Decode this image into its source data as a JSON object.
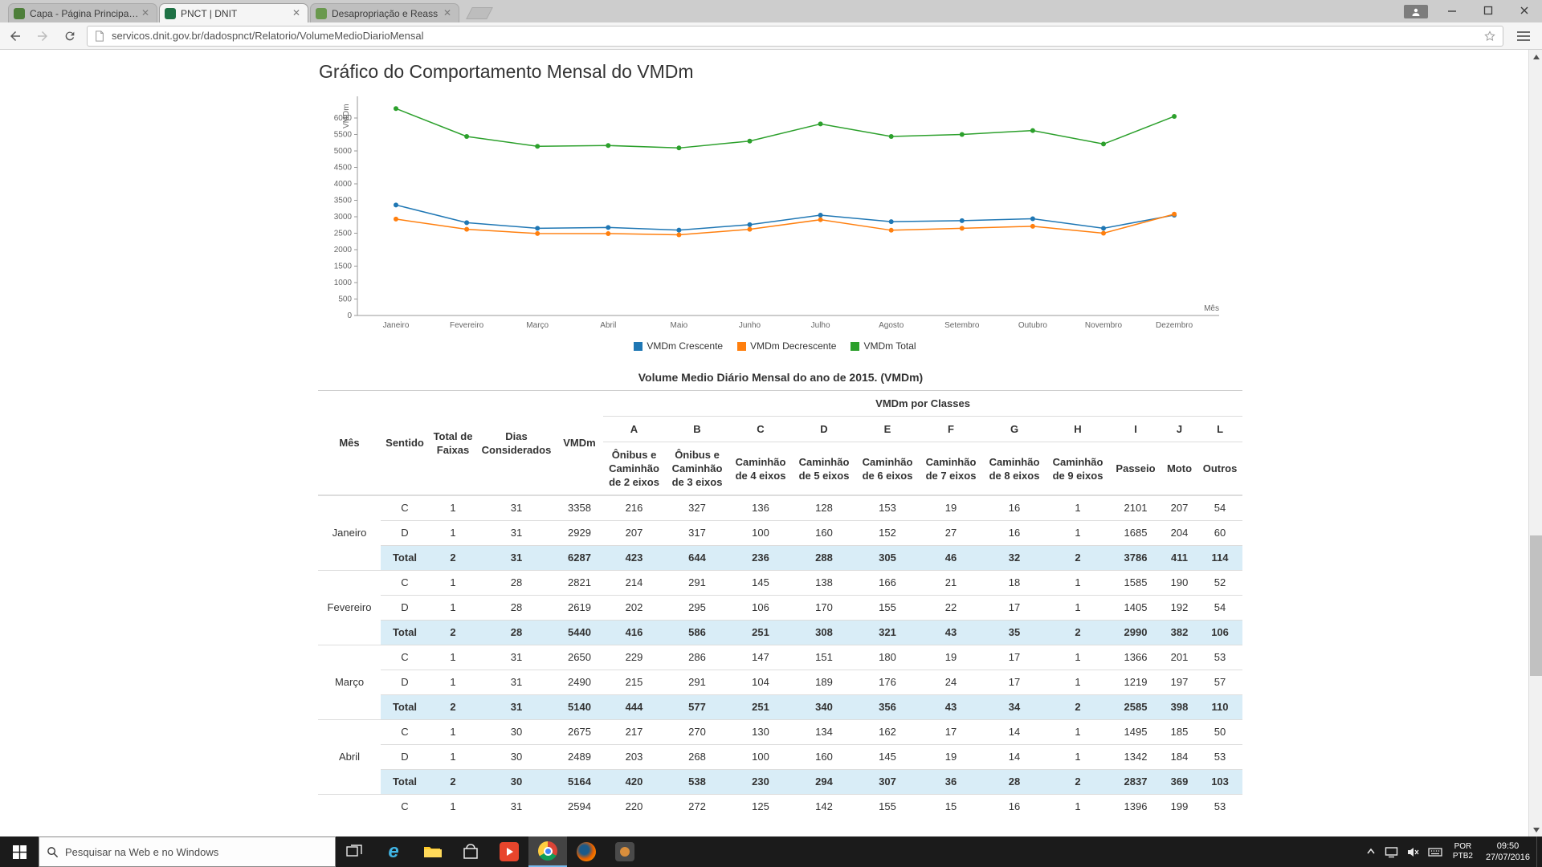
{
  "browser": {
    "tabs": [
      {
        "title": "Capa - Página Principal —"
      },
      {
        "title": "PNCT | DNIT"
      },
      {
        "title": "Desapropriação e Reass"
      }
    ],
    "close_glyph": "✕",
    "url": "servicos.dnit.gov.br/dadospnct/Relatorio/VolumeMedioDiarioMensal"
  },
  "page": {
    "chart_title": "Gráfico do Comportamento Mensal do VMDm",
    "table_title": "Volume Medio Diário Mensal do ano de 2015. (VMDm)"
  },
  "chart_data": {
    "type": "line",
    "title": "Gráfico do Comportamento Mensal do VMDm",
    "xlabel": "Mês",
    "ylabel": "VMDm",
    "x": [
      "Janeiro",
      "Fevereiro",
      "Março",
      "Abril",
      "Maio",
      "Junho",
      "Julho",
      "Agosto",
      "Setembro",
      "Outubro",
      "Novembro",
      "Dezembro"
    ],
    "ylim": [
      0,
      6500
    ],
    "yticks": [
      0,
      500,
      1000,
      1500,
      2000,
      2500,
      3000,
      3500,
      4000,
      4500,
      5000,
      5500,
      6000
    ],
    "grid": false,
    "legend_position": "bottom",
    "series": [
      {
        "name": "VMDm Crescente",
        "color": "#1f77b4",
        "values": [
          3358,
          2821,
          2650,
          2675,
          2594,
          2760,
          3050,
          2850,
          2880,
          2940,
          2650,
          3050
        ]
      },
      {
        "name": "VMDm Decrescente",
        "color": "#ff7f0e",
        "values": [
          2929,
          2619,
          2490,
          2489,
          2450,
          2620,
          2910,
          2590,
          2650,
          2710,
          2500,
          3080
        ]
      },
      {
        "name": "VMDm Total",
        "color": "#2ca02c",
        "values": [
          6287,
          5440,
          5140,
          5164,
          5090,
          5300,
          5820,
          5440,
          5500,
          5620,
          5210,
          6050
        ]
      }
    ]
  },
  "table": {
    "classes_group_label": "VMDm por Classes",
    "base_columns": [
      "Mês",
      "Sentido",
      "Total de Faixas",
      "Dias Considerados",
      "VMDm"
    ],
    "class_letters": [
      "A",
      "B",
      "C",
      "D",
      "E",
      "F",
      "G",
      "H",
      "I",
      "J",
      "L"
    ],
    "class_labels": [
      "Ônibus e Caminhão de 2 eixos",
      "Ônibus e Caminhão de 3 eixos",
      "Caminhão de 4 eixos",
      "Caminhão de 5 eixos",
      "Caminhão de 6 eixos",
      "Caminhão de 7 eixos",
      "Caminhão de 8 eixos",
      "Caminhão de 9 eixos",
      "Passeio",
      "Moto",
      "Outros"
    ],
    "months": [
      {
        "name": "Janeiro",
        "rows": [
          [
            "C",
            "1",
            "31",
            "3358",
            "216",
            "327",
            "136",
            "128",
            "153",
            "19",
            "16",
            "1",
            "2101",
            "207",
            "54"
          ],
          [
            "D",
            "1",
            "31",
            "2929",
            "207",
            "317",
            "100",
            "160",
            "152",
            "27",
            "16",
            "1",
            "1685",
            "204",
            "60"
          ]
        ],
        "total": [
          "Total",
          "2",
          "31",
          "6287",
          "423",
          "644",
          "236",
          "288",
          "305",
          "46",
          "32",
          "2",
          "3786",
          "411",
          "114"
        ]
      },
      {
        "name": "Fevereiro",
        "rows": [
          [
            "C",
            "1",
            "28",
            "2821",
            "214",
            "291",
            "145",
            "138",
            "166",
            "21",
            "18",
            "1",
            "1585",
            "190",
            "52"
          ],
          [
            "D",
            "1",
            "28",
            "2619",
            "202",
            "295",
            "106",
            "170",
            "155",
            "22",
            "17",
            "1",
            "1405",
            "192",
            "54"
          ]
        ],
        "total": [
          "Total",
          "2",
          "28",
          "5440",
          "416",
          "586",
          "251",
          "308",
          "321",
          "43",
          "35",
          "2",
          "2990",
          "382",
          "106"
        ]
      },
      {
        "name": "Março",
        "rows": [
          [
            "C",
            "1",
            "31",
            "2650",
            "229",
            "286",
            "147",
            "151",
            "180",
            "19",
            "17",
            "1",
            "1366",
            "201",
            "53"
          ],
          [
            "D",
            "1",
            "31",
            "2490",
            "215",
            "291",
            "104",
            "189",
            "176",
            "24",
            "17",
            "1",
            "1219",
            "197",
            "57"
          ]
        ],
        "total": [
          "Total",
          "2",
          "31",
          "5140",
          "444",
          "577",
          "251",
          "340",
          "356",
          "43",
          "34",
          "2",
          "2585",
          "398",
          "110"
        ]
      },
      {
        "name": "Abril",
        "rows": [
          [
            "C",
            "1",
            "30",
            "2675",
            "217",
            "270",
            "130",
            "134",
            "162",
            "17",
            "14",
            "1",
            "1495",
            "185",
            "50"
          ],
          [
            "D",
            "1",
            "30",
            "2489",
            "203",
            "268",
            "100",
            "160",
            "145",
            "19",
            "14",
            "1",
            "1342",
            "184",
            "53"
          ]
        ],
        "total": [
          "Total",
          "2",
          "30",
          "5164",
          "420",
          "538",
          "230",
          "294",
          "307",
          "36",
          "28",
          "2",
          "2837",
          "369",
          "103"
        ]
      },
      {
        "name": "",
        "rows": [
          [
            "C",
            "1",
            "31",
            "2594",
            "220",
            "272",
            "125",
            "142",
            "155",
            "15",
            "16",
            "1",
            "1396",
            "199",
            "53"
          ]
        ]
      }
    ]
  },
  "taskbar": {
    "search_placeholder": "Pesquisar na Web e no Windows",
    "language_line1": "POR",
    "language_line2": "PTB2",
    "time": "09:50",
    "date": "27/07/2016"
  }
}
